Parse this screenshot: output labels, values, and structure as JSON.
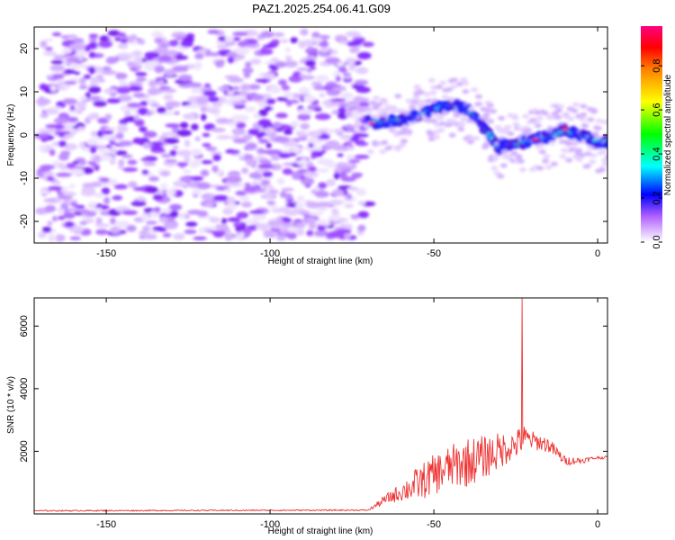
{
  "title": "PAZ1.2025.254.06.41.G09",
  "chart_data": [
    {
      "type": "heatmap",
      "name": "spectrogram",
      "xlabel": "Height of straight line (km)",
      "ylabel": "Frequency (Hz)",
      "xlim": [
        -172,
        3
      ],
      "ylim": [
        -25,
        25
      ],
      "xticks": [
        -150,
        -100,
        -50,
        0
      ],
      "yticks": [
        -20,
        -10,
        0,
        10,
        20
      ],
      "ridge": {
        "x": [
          -70,
          -65,
          -60,
          -55,
          -50,
          -45,
          -40,
          -37,
          -34,
          -30,
          -27,
          -24,
          -20,
          -15,
          -10,
          -5,
          0,
          3
        ],
        "freq": [
          3,
          3,
          3.5,
          4.5,
          6,
          7,
          6,
          4,
          1,
          -3,
          -2,
          -2,
          -1,
          -0.5,
          1,
          0,
          -1.5,
          -1.5
        ]
      },
      "colorbar": {
        "label": "Normalized spectral amplitude",
        "range": [
          0,
          0.98
        ],
        "ticks": [
          0.0,
          0.2,
          0.4,
          0.6,
          0.8
        ]
      }
    },
    {
      "type": "line",
      "name": "snr",
      "xlabel": "Height of straight line (km)",
      "ylabel": "SNR (10 * v/v)",
      "xlim": [
        -172,
        3
      ],
      "ylim": [
        0,
        6900
      ],
      "xticks": [
        -150,
        -100,
        -50,
        0
      ],
      "yticks": [
        2000,
        4000,
        6000
      ],
      "color": "#ee3333",
      "profile": {
        "x": [
          -172,
          -70,
          -65,
          -60,
          -55,
          -50,
          -45,
          -40,
          -35,
          -30,
          -27,
          -25,
          -23,
          -20,
          -15,
          -10,
          -5,
          0,
          3
        ],
        "mean": [
          100,
          120,
          450,
          700,
          950,
          1250,
          1500,
          1650,
          1800,
          2000,
          2150,
          2200,
          2400,
          2350,
          2200,
          1700,
          1700,
          1800,
          1800
        ],
        "jitter": [
          20,
          20,
          150,
          300,
          550,
          650,
          700,
          800,
          700,
          600,
          500,
          450,
          500,
          300,
          250,
          150,
          100,
          50,
          50
        ]
      },
      "peak": {
        "x": -23,
        "y": 6900
      }
    }
  ]
}
